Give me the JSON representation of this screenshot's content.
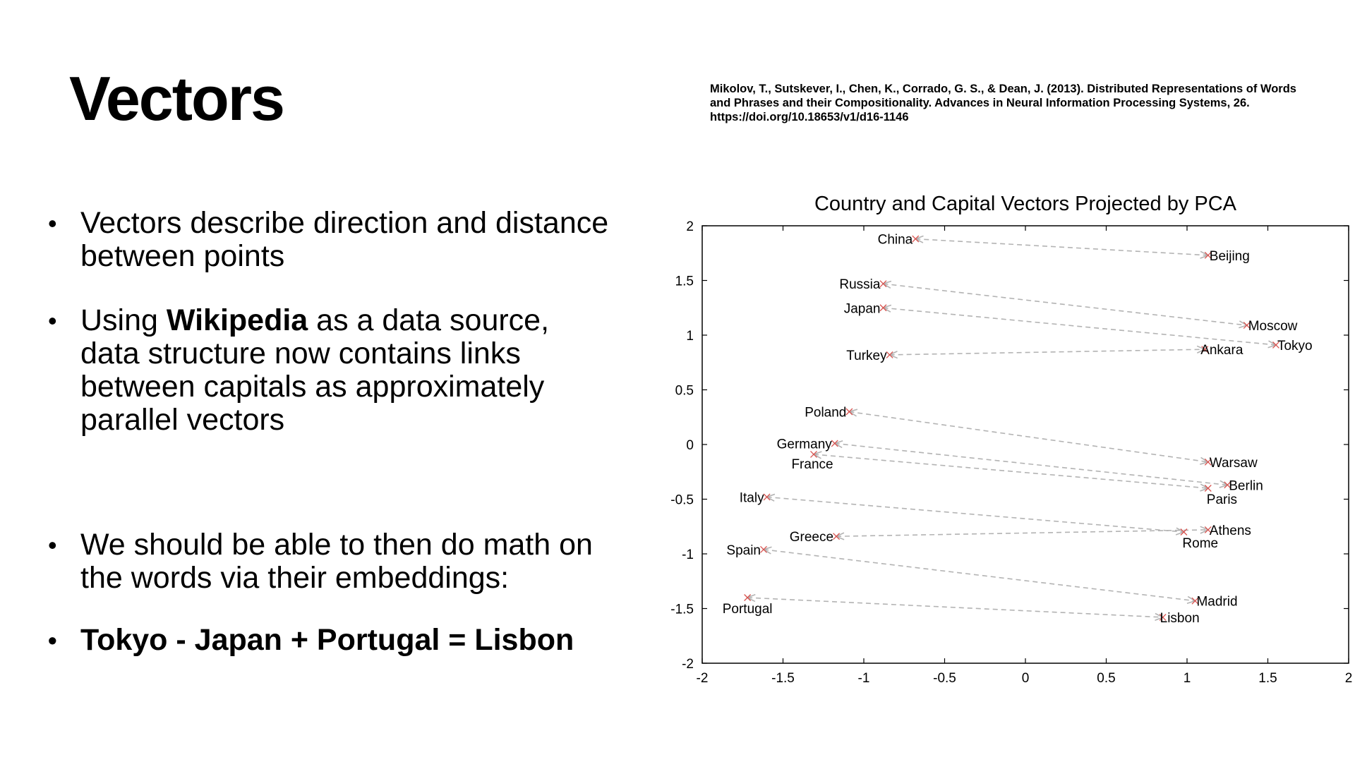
{
  "slide": {
    "title": "Vectors",
    "citation": "Mikolov, T., Sutskever, I., Chen, K., Corrado, G. S., & Dean, J. (2013). Distributed Representations of Words and Phrases and their Compositionality. Advances in Neural Information Processing Systems, 26. https://doi.org/10.18653/v1/d16-1146",
    "bullet_symbol": "•",
    "bullets": [
      {
        "text": "Vectors describe direction and distance between points"
      },
      {
        "before": "Using ",
        "bold": "Wikipedia",
        "after": " as a data source, data structure now contains links between capitals as approximately parallel vectors"
      },
      {
        "text": "We should be able to then do math on the words via their embeddings:"
      },
      {
        "text": "Tokyo - Japan + Portugal = Lisbon"
      }
    ]
  },
  "chart_data": {
    "type": "scatter",
    "title": "Country and Capital Vectors Projected by PCA",
    "xlim": [
      -2,
      2
    ],
    "ylim": [
      -2,
      2
    ],
    "xticks": [
      "-2",
      "-1.5",
      "-1",
      "-0.5",
      "0",
      "0.5",
      "1",
      "1.5",
      "2"
    ],
    "yticks": [
      "-2",
      "-1.5",
      "-1",
      "-0.5",
      "0",
      "0.5",
      "1",
      "1.5",
      "2"
    ],
    "grid": false,
    "point_color": "#d9534f",
    "arrow_color": "#b3b3b3",
    "pairs": [
      {
        "country": "China",
        "cx": -0.68,
        "cy": 1.88,
        "capital": "Beijing",
        "kx": 1.13,
        "ky": 1.73
      },
      {
        "country": "Russia",
        "cx": -0.88,
        "cy": 1.47,
        "capital": "Moscow",
        "kx": 1.37,
        "ky": 1.09
      },
      {
        "country": "Japan",
        "cx": -0.88,
        "cy": 1.25,
        "capital": "Tokyo",
        "kx": 1.55,
        "ky": 0.91
      },
      {
        "country": "Turkey",
        "cx": -0.84,
        "cy": 0.82,
        "capital": "Ankara",
        "kx": 1.11,
        "ky": 0.87
      },
      {
        "country": "Poland",
        "cx": -1.09,
        "cy": 0.3,
        "capital": "Warsaw",
        "kx": 1.13,
        "ky": -0.16
      },
      {
        "country": "Germany",
        "cx": -1.18,
        "cy": 0.01,
        "capital": "Berlin",
        "kx": 1.25,
        "ky": -0.37
      },
      {
        "country": "France",
        "cx": -1.31,
        "cy": -0.09,
        "capital": "Paris",
        "kx": 1.13,
        "ky": -0.4
      },
      {
        "country": "Italy",
        "cx": -1.6,
        "cy": -0.48,
        "capital": "Rome",
        "kx": 0.98,
        "ky": -0.8
      },
      {
        "country": "Greece",
        "cx": -1.17,
        "cy": -0.84,
        "capital": "Athens",
        "kx": 1.13,
        "ky": -0.78
      },
      {
        "country": "Spain",
        "cx": -1.62,
        "cy": -0.96,
        "capital": "Madrid",
        "kx": 1.05,
        "ky": -1.43
      },
      {
        "country": "Portugal",
        "cx": -1.72,
        "cy": -1.4,
        "capital": "Lisbon",
        "kx": 0.85,
        "ky": -1.58
      }
    ]
  }
}
